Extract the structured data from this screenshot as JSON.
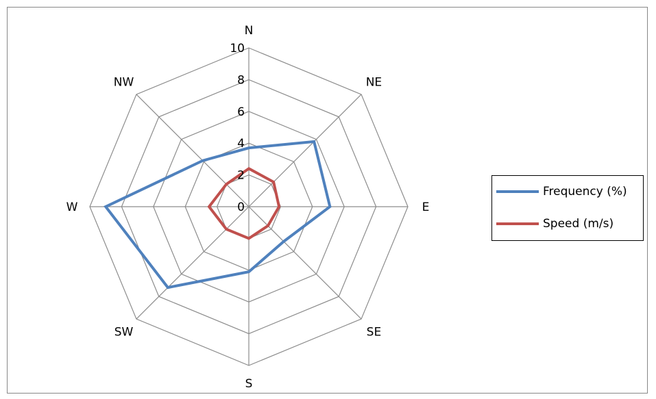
{
  "chart_data": {
    "type": "radar",
    "title": "",
    "categories": [
      "N",
      "NE",
      "E",
      "SE",
      "S",
      "SW",
      "W",
      "NW"
    ],
    "rlim": [
      0,
      10
    ],
    "r_ticks": [
      0,
      2,
      4,
      6,
      8,
      10
    ],
    "r_tick_labels": [
      "0",
      "2",
      "4",
      "6",
      "8",
      "10"
    ],
    "grid": true,
    "legend_position": "right",
    "series": [
      {
        "name": "Frequency (%)",
        "color": "#4F81BD",
        "values": [
          3.7,
          5.8,
          5.1,
          3.1,
          4.1,
          7.2,
          9.0,
          4.1
        ]
      },
      {
        "name": "Speed (m/s)",
        "color": "#C0504D",
        "values": [
          2.4,
          2.2,
          1.9,
          1.7,
          2.0,
          2.0,
          2.5,
          2.0
        ]
      }
    ]
  }
}
